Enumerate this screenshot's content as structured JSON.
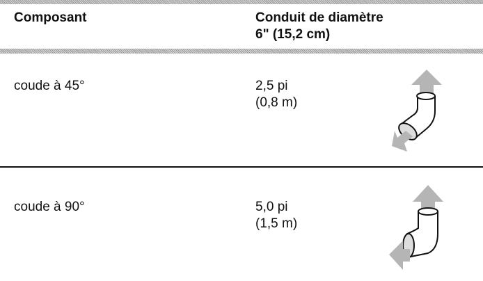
{
  "table": {
    "headers": [
      [
        "Composant"
      ],
      [
        "Conduit de diamètre",
        "6\" (15,2 cm)"
      ]
    ],
    "rows": [
      [
        [
          "coude à 45°"
        ],
        [
          "2,5 pi",
          "(0,8 m)"
        ]
      ],
      [
        [
          "coude à 90°"
        ],
        [
          "5,0 pi",
          "(1,5 m)"
        ]
      ]
    ]
  }
}
